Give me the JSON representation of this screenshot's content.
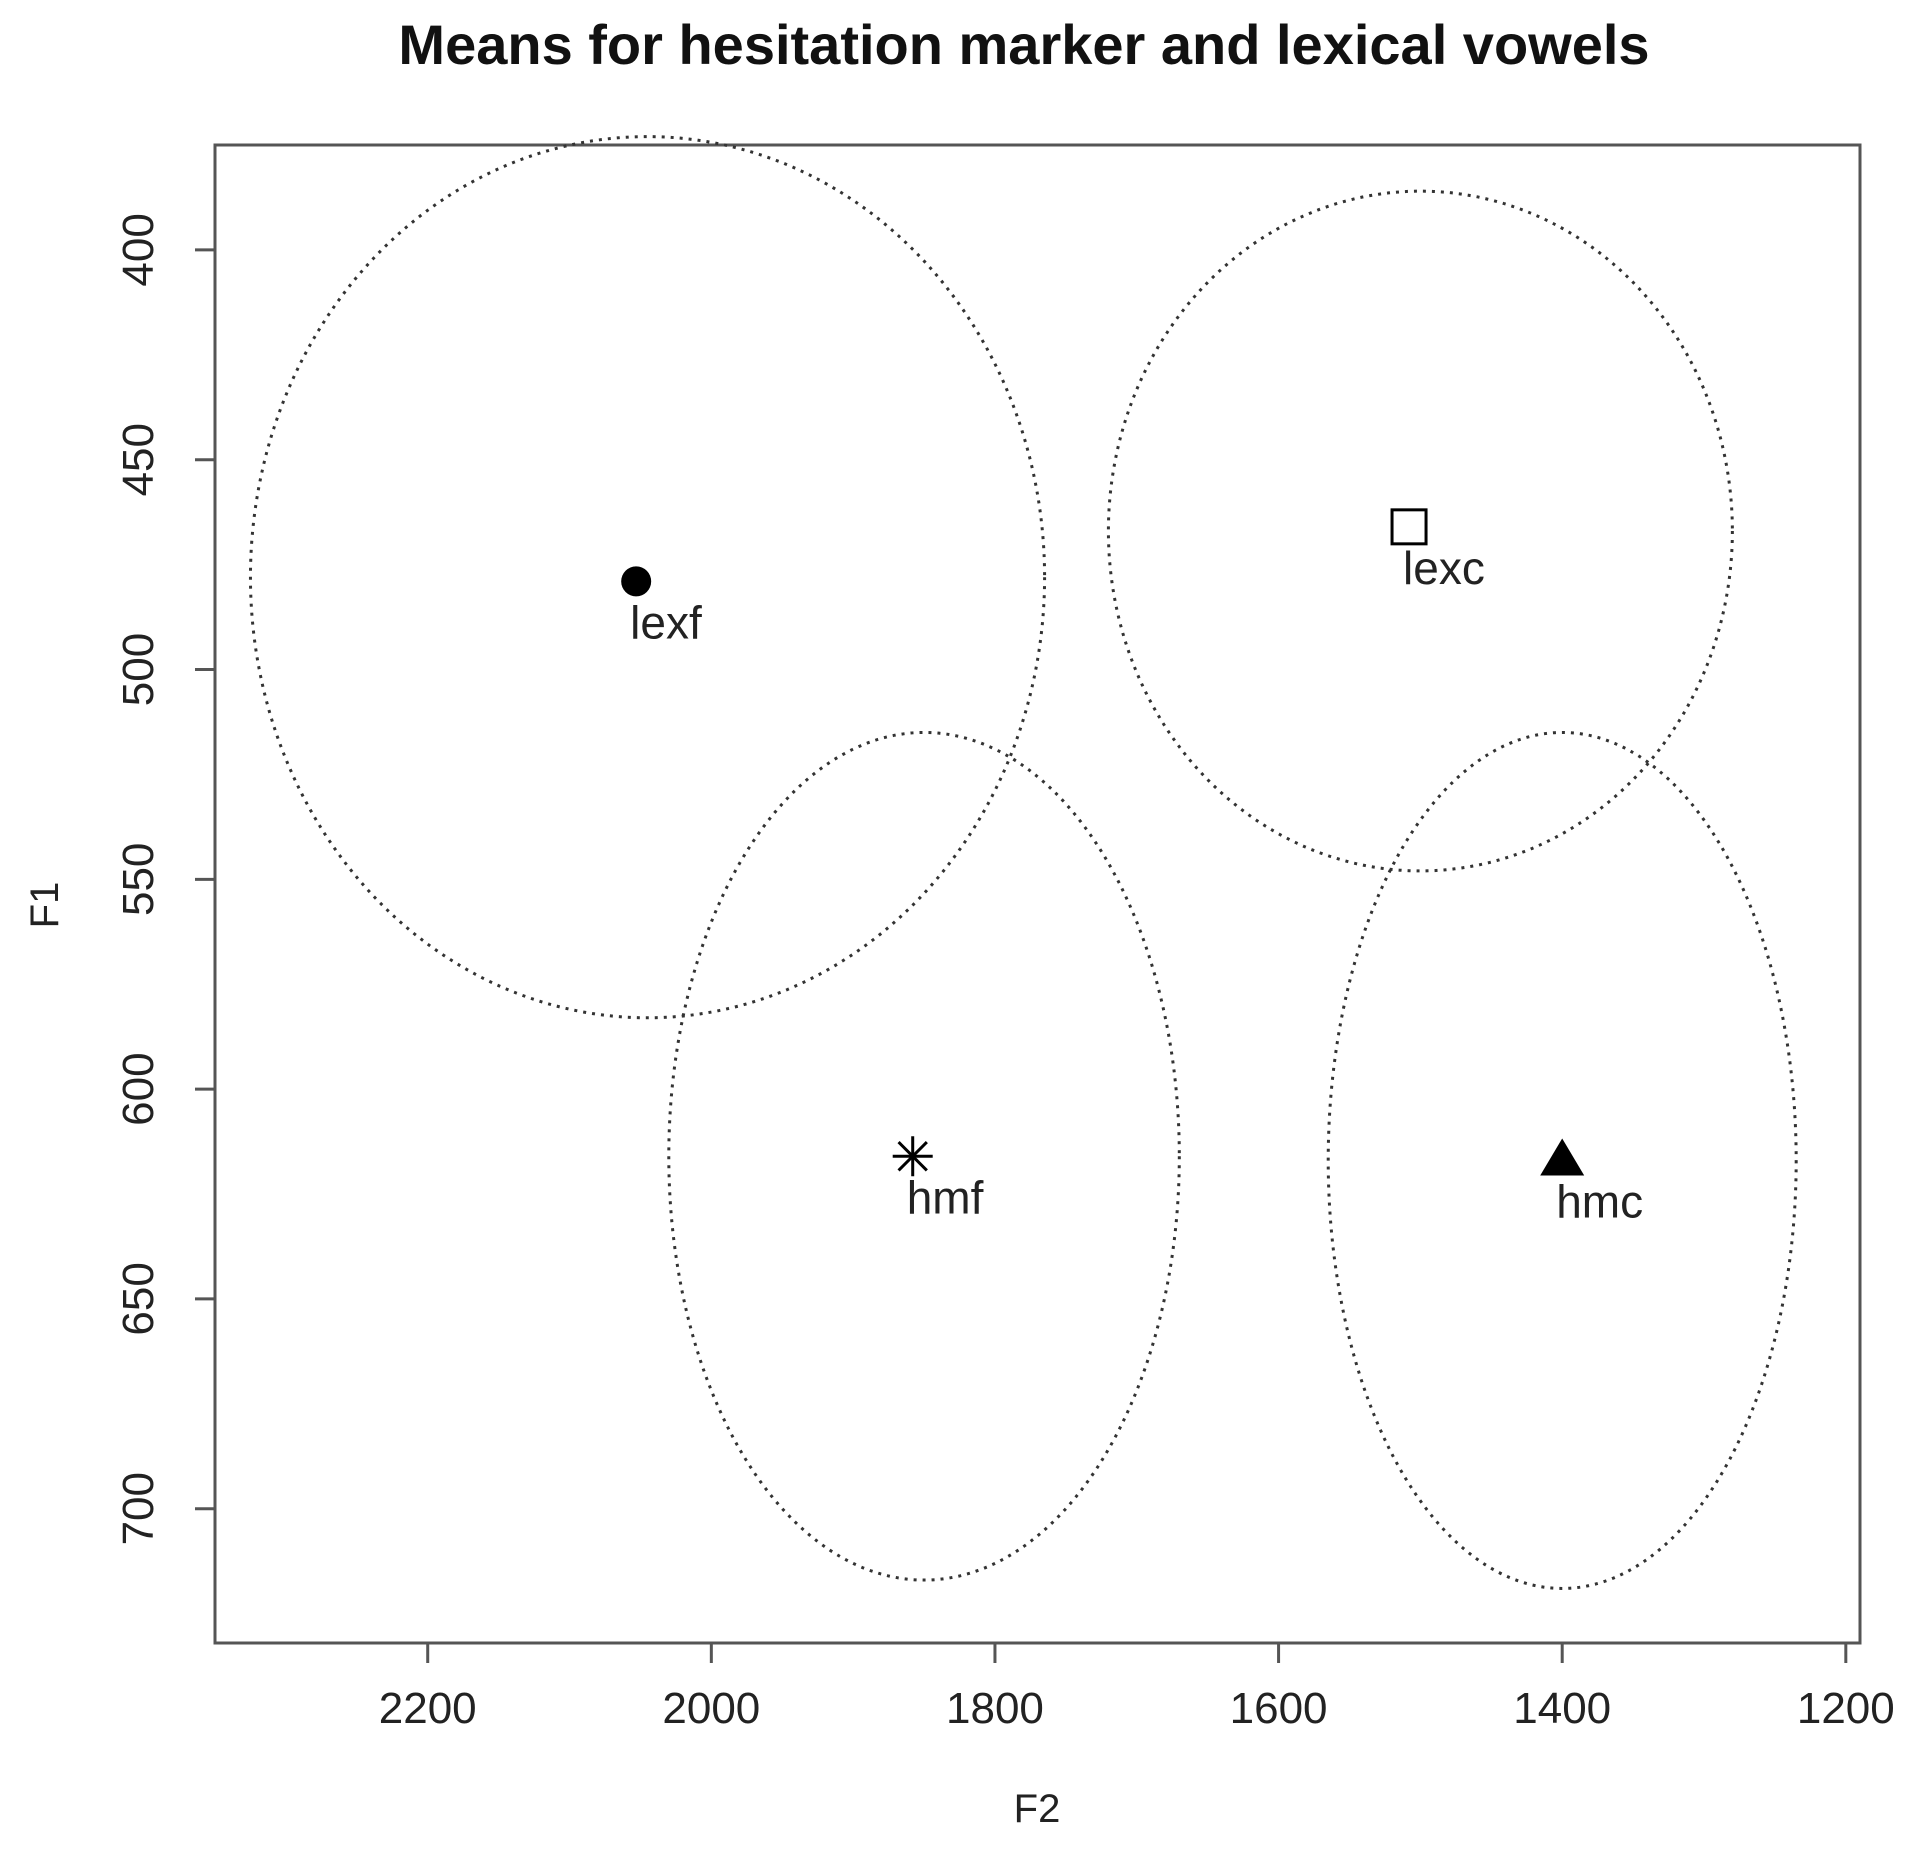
{
  "chart_data": {
    "type": "scatter",
    "title": "Means for hesitation marker and lexical vowels",
    "xlabel": "F2",
    "ylabel": "F1",
    "x_reversed": true,
    "y_reversed": true,
    "xlim": [
      2350,
      1190
    ],
    "ylim": [
      375,
      732
    ],
    "x_ticks": [
      2200,
      2000,
      1800,
      1600,
      1400,
      1200
    ],
    "y_ticks": [
      400,
      450,
      500,
      550,
      600,
      650,
      700
    ],
    "grid": false,
    "legend": "none",
    "points": [
      {
        "label": "lexf",
        "x": 2053,
        "y": 479,
        "marker": "filled-circle"
      },
      {
        "label": "lexc",
        "x": 1508,
        "y": 466,
        "marker": "open-square"
      },
      {
        "label": "hmf",
        "x": 1858,
        "y": 616,
        "marker": "asterisk"
      },
      {
        "label": "hmc",
        "x": 1400,
        "y": 617,
        "marker": "filled-triangle"
      }
    ],
    "ellipses": [
      {
        "label": "lexf",
        "cx": 2045,
        "cy": 478,
        "rx": 280,
        "ry": 105
      },
      {
        "label": "lexc",
        "cx": 1500,
        "cy": 467,
        "rx": 220,
        "ry": 81
      },
      {
        "label": "hmf",
        "cx": 1850,
        "cy": 616,
        "rx": 180,
        "ry": 101
      },
      {
        "label": "hmc",
        "cx": 1400,
        "cy": 617,
        "rx": 165,
        "ry": 102
      }
    ]
  }
}
